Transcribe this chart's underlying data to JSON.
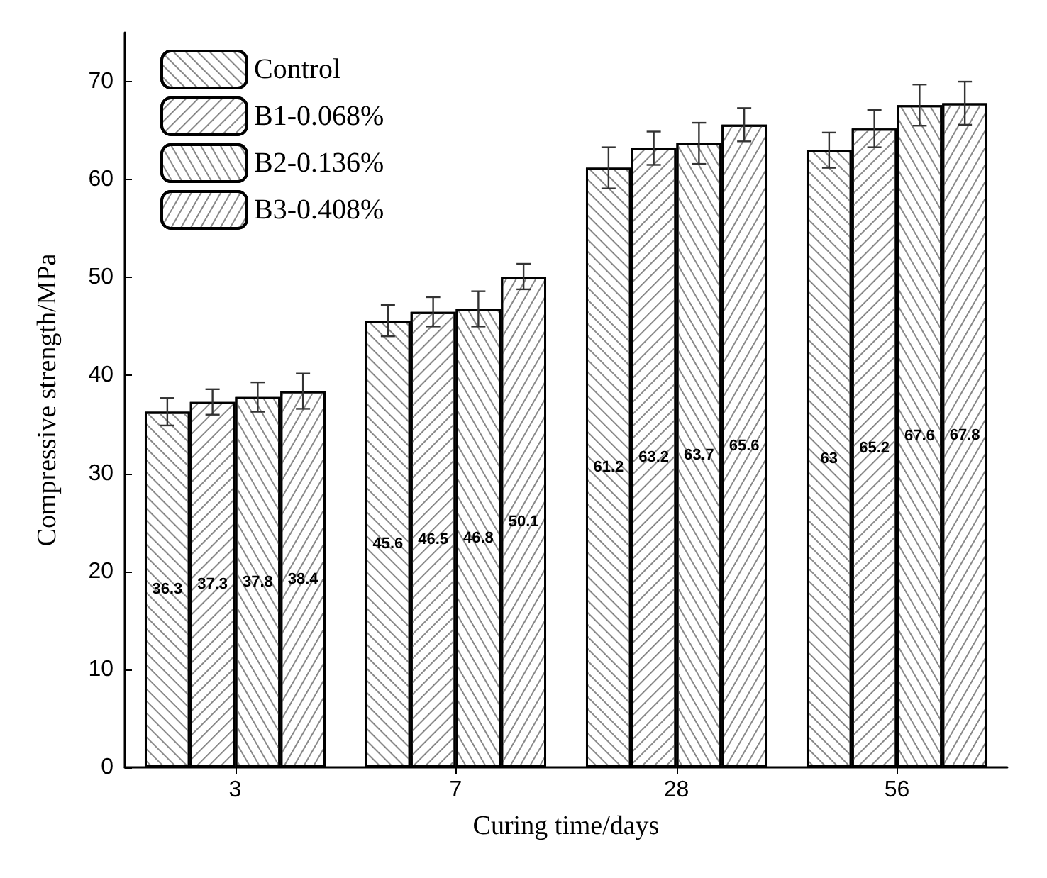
{
  "chart_data": {
    "type": "bar",
    "xlabel": "Curing time/days",
    "ylabel": "Compressive strength/MPa",
    "categories": [
      "3",
      "7",
      "28",
      "56"
    ],
    "series": [
      {
        "name": "Control",
        "color": "#ffffff",
        "values": [
          36.3,
          45.6,
          61.2,
          63
        ],
        "errors": [
          1.4,
          1.6,
          2.1,
          1.8
        ]
      },
      {
        "name": "B1-0.068%",
        "color": "#ffffff",
        "values": [
          37.3,
          46.5,
          63.2,
          65.2
        ],
        "errors": [
          1.3,
          1.5,
          1.7,
          1.9
        ]
      },
      {
        "name": "B2-0.136%",
        "color": "#ffffff",
        "values": [
          37.8,
          46.8,
          63.7,
          67.6
        ],
        "errors": [
          1.5,
          1.8,
          2.1,
          2.1
        ]
      },
      {
        "name": "B3-0.408%",
        "color": "#ffffff",
        "values": [
          38.4,
          50.1,
          65.6,
          67.8
        ],
        "errors": [
          1.8,
          1.3,
          1.7,
          2.2
        ]
      }
    ],
    "ylim": [
      0,
      75
    ],
    "yticks": [
      0,
      10,
      20,
      30,
      40,
      50,
      60,
      70
    ],
    "data_labels": true,
    "legend": "top left",
    "grid": false
  }
}
